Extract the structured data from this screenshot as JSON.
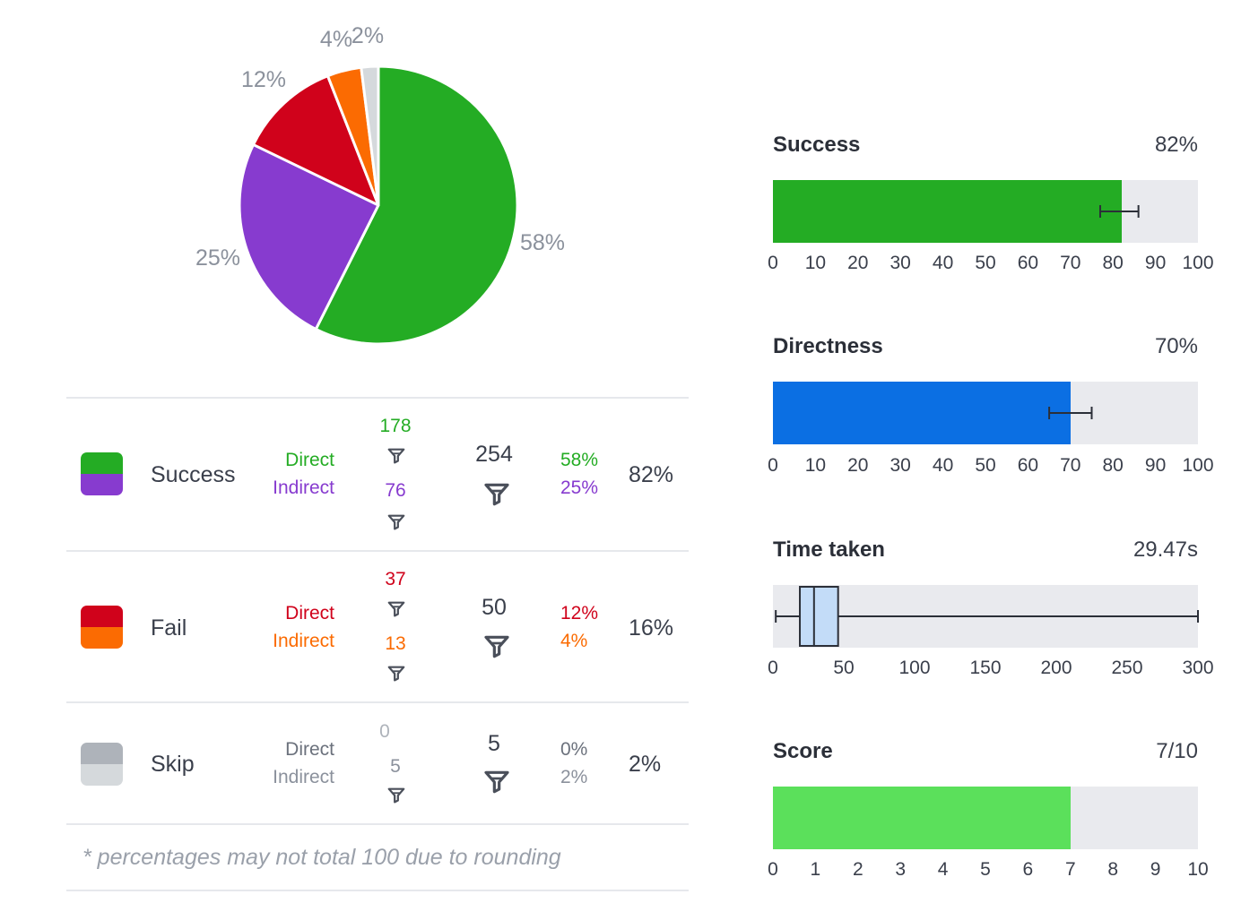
{
  "chart_data": [
    {
      "type": "pie",
      "slices": [
        {
          "label": "58%",
          "value": 58,
          "color": "#24ac24"
        },
        {
          "label": "25%",
          "value": 25,
          "color": "#873bcf"
        },
        {
          "label": "12%",
          "value": 12,
          "color": "#d0021b"
        },
        {
          "label": "4%",
          "value": 4,
          "color": "#fb6b02"
        },
        {
          "label": "2%",
          "value": 2,
          "color": "#d5d9dc"
        }
      ]
    },
    {
      "type": "table",
      "rows": [
        {
          "category": "Success",
          "colors": [
            "#24ac24",
            "#873bcf"
          ],
          "direct_label": "Direct",
          "indirect_label": "Indirect",
          "direct_count": "178",
          "indirect_count": "76",
          "total": "254",
          "direct_pct": "58%",
          "indirect_pct": "25%",
          "row_pct": "82%",
          "direct_color": "#24ac24",
          "indirect_color": "#873bcf",
          "count_direct_color": "#24ac24",
          "count_indirect_color": "#873bcf",
          "pct_direct_color": "#24ac24",
          "pct_indirect_color": "#873bcf"
        },
        {
          "category": "Fail",
          "colors": [
            "#d0021b",
            "#fb6b02"
          ],
          "direct_label": "Direct",
          "indirect_label": "Indirect",
          "direct_count": "37",
          "indirect_count": "13",
          "total": "50",
          "direct_pct": "12%",
          "indirect_pct": "4%",
          "row_pct": "16%",
          "direct_color": "#d0021b",
          "indirect_color": "#fb6b02",
          "count_direct_color": "#d0021b",
          "count_indirect_color": "#fb6b02",
          "pct_direct_color": "#d0021b",
          "pct_indirect_color": "#fb6b02"
        },
        {
          "category": "Skip",
          "colors": [
            "#aeb3ba",
            "#d5d9dc"
          ],
          "direct_label": "Direct",
          "indirect_label": "Indirect",
          "direct_count": "0",
          "indirect_count": "5",
          "total": "5",
          "direct_pct": "0%",
          "indirect_pct": "2%",
          "row_pct": "2%",
          "direct_color": "#6b717c",
          "indirect_color": "#8b919c",
          "count_direct_color": "#aeb3ba",
          "count_indirect_color": "#8b919c",
          "pct_direct_color": "#6b717c",
          "pct_indirect_color": "#8b919c"
        }
      ],
      "footnote": "* percentages may not total 100 due to rounding"
    },
    {
      "type": "bar",
      "title": "Success",
      "value_label": "82%",
      "value": 82,
      "error": [
        77,
        86
      ],
      "xlim": [
        0,
        100
      ],
      "ticks": [
        "0",
        "10",
        "20",
        "30",
        "40",
        "50",
        "60",
        "70",
        "80",
        "90",
        "100"
      ],
      "color": "#24ac24"
    },
    {
      "type": "bar",
      "title": "Directness",
      "value_label": "70%",
      "value": 70,
      "error": [
        65,
        75
      ],
      "xlim": [
        0,
        100
      ],
      "ticks": [
        "0",
        "10",
        "20",
        "30",
        "40",
        "50",
        "60",
        "70",
        "80",
        "90",
        "100"
      ],
      "color": "#0b6fe3"
    },
    {
      "type": "box",
      "title": "Time taken",
      "value_label": "29.47s",
      "whisker": [
        2,
        300
      ],
      "q1": 19,
      "median": 29,
      "q3": 46,
      "xlim": [
        0,
        300
      ],
      "ticks": [
        "0",
        "50",
        "100",
        "150",
        "200",
        "250",
        "300"
      ],
      "color": "#c3dcf8"
    },
    {
      "type": "bar",
      "title": "Score",
      "value_label": "7/10",
      "value": 7,
      "xlim": [
        0,
        10
      ],
      "ticks": [
        "0",
        "1",
        "2",
        "3",
        "4",
        "5",
        "6",
        "7",
        "8",
        "9",
        "10"
      ],
      "color": "#5be05b"
    }
  ]
}
